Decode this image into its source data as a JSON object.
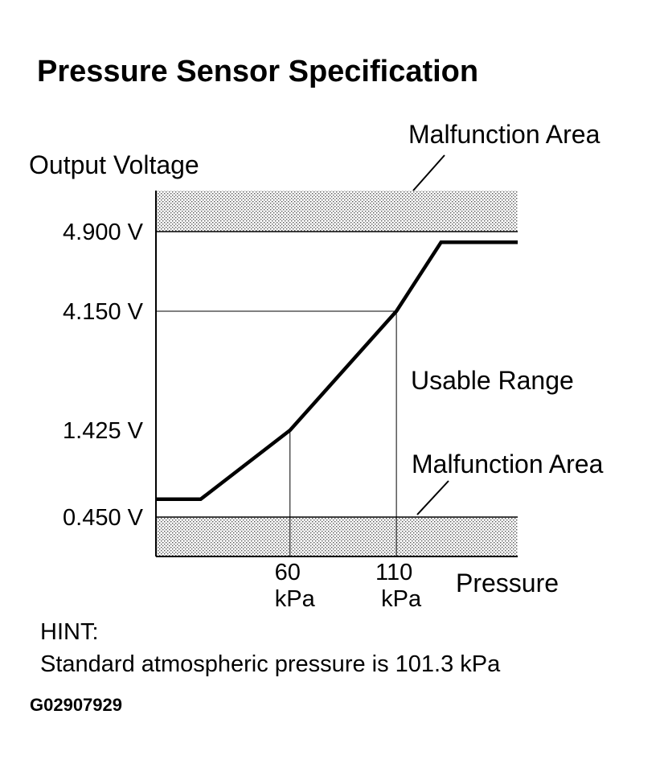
{
  "title": "Pressure Sensor Specification",
  "hint": {
    "heading": "HINT:",
    "text": "Standard atmospheric pressure is 101.3 kPa"
  },
  "figure_code": "G02907929",
  "colors": {
    "line": "#000000",
    "malfunction_fill": "#c8c8c8",
    "background": "#ffffff"
  },
  "chart_data": {
    "type": "line",
    "title": "Pressure Sensor Specification",
    "ylabel": "Output Voltage",
    "xlabel": "Pressure",
    "y_ticks": [
      {
        "value": 0.45,
        "label": "0.450 V"
      },
      {
        "value": 1.425,
        "label": "1.425 V"
      },
      {
        "value": 4.15,
        "label": "4.150 V"
      },
      {
        "value": 4.9,
        "label": "4.900 V"
      }
    ],
    "x_ticks": [
      {
        "value": 60,
        "label_line1": "60",
        "label_line2": "kPa"
      },
      {
        "value": 110,
        "label_line1": "110",
        "label_line2": "kPa"
      }
    ],
    "xlim": [
      -3,
      167
    ],
    "y_scale": "piecewise (spacing between labelled voltages not proportional)",
    "grid": "reference lines at 60 kPa, 110 kPa, 1.425 V and 4.150 V",
    "series": [
      {
        "x": [
          -3,
          18,
          60,
          110,
          131,
          167
        ],
        "y": [
          0.65,
          0.65,
          1.425,
          4.15,
          4.8,
          4.8
        ]
      }
    ],
    "regions": [
      {
        "label": "Malfunction Area",
        "from": 4.9,
        "to": "top"
      },
      {
        "label": "Usable Range",
        "from": 0.45,
        "to": 4.9
      },
      {
        "label": "Malfunction Area",
        "from": "bottom",
        "to": 0.45
      }
    ]
  }
}
